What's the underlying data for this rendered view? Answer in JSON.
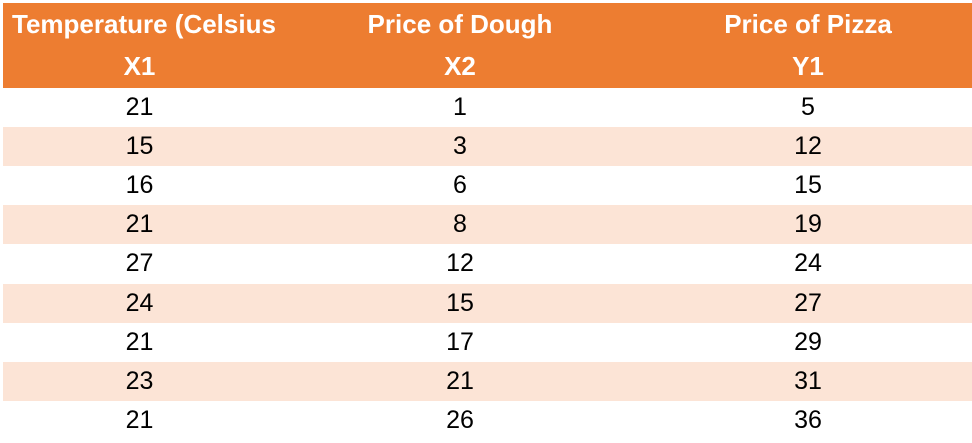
{
  "colors": {
    "header_bg": "#ED7D31",
    "header_text": "#FFFFFF",
    "row_alt_bg": "#FCE4D6",
    "cell_text": "#000000"
  },
  "table": {
    "columns": [
      {
        "title": "Temperature (Celsius)",
        "variable": "X1"
      },
      {
        "title": "Price of Dough",
        "variable": "X2"
      },
      {
        "title": "Price of Pizza",
        "variable": "Y1"
      }
    ],
    "rows": [
      {
        "x1": "21",
        "x2": "1",
        "y1": "5"
      },
      {
        "x1": "15",
        "x2": "3",
        "y1": "12"
      },
      {
        "x1": "16",
        "x2": "6",
        "y1": "15"
      },
      {
        "x1": "21",
        "x2": "8",
        "y1": "19"
      },
      {
        "x1": "27",
        "x2": "12",
        "y1": "24"
      },
      {
        "x1": "24",
        "x2": "15",
        "y1": "27"
      },
      {
        "x1": "21",
        "x2": "17",
        "y1": "29"
      },
      {
        "x1": "23",
        "x2": "21",
        "y1": "31"
      },
      {
        "x1": "21",
        "x2": "26",
        "y1": "36"
      }
    ]
  },
  "chart_data": {
    "type": "table",
    "columns": [
      {
        "label": "Temperature (Celsius)",
        "variable": "X1"
      },
      {
        "label": "Price of Dough",
        "variable": "X2"
      },
      {
        "label": "Price of Pizza",
        "variable": "Y1"
      }
    ],
    "rows": [
      [
        21,
        1,
        5
      ],
      [
        15,
        3,
        12
      ],
      [
        16,
        6,
        15
      ],
      [
        21,
        8,
        19
      ],
      [
        27,
        12,
        24
      ],
      [
        24,
        15,
        27
      ],
      [
        21,
        17,
        29
      ],
      [
        23,
        21,
        31
      ],
      [
        21,
        26,
        36
      ]
    ]
  }
}
